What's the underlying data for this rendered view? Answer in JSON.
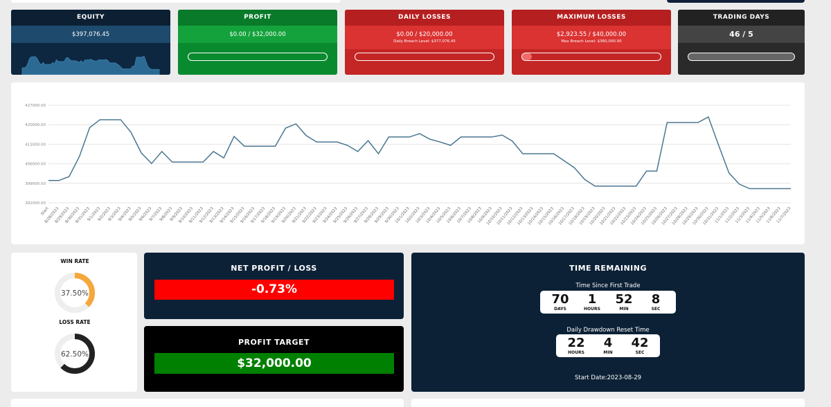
{
  "header_cards": [
    {
      "title": "EQUITY",
      "value": "$397,076.45"
    },
    {
      "title": "PROFIT",
      "value": "$0.00 / $32,000.00"
    },
    {
      "title": "DAILY LOSSES",
      "value": "$0.00 / $20,000.00",
      "note": "Daily Breach Level: $377,076.45"
    },
    {
      "title": "MAXIMUM LOSSES",
      "value": "$2,923.55 / $40,000.00",
      "note": "Max Breach Level: $360,000.00"
    },
    {
      "title": "TRADING DAYS",
      "value": "46 / 5"
    }
  ],
  "chart_data": {
    "type": "line",
    "x": [
      "Start",
      "8/28/2023",
      "8/29/2023",
      "8/30/2023",
      "8/31/2023",
      "9/1/2023",
      "9/2/2023",
      "9/3/2023",
      "9/4/2023",
      "9/5/2023",
      "9/6/2023",
      "9/7/2023",
      "9/8/2023",
      "9/9/2023",
      "9/10/2023",
      "9/11/2023",
      "9/12/2023",
      "9/13/2023",
      "9/14/2023",
      "9/15/2023",
      "9/16/2023",
      "9/17/2023",
      "9/18/2023",
      "9/19/2023",
      "9/20/2023",
      "9/21/2023",
      "9/22/2023",
      "9/23/2023",
      "9/24/2023",
      "9/25/2023",
      "9/26/2023",
      "9/27/2023",
      "9/28/2023",
      "9/29/2023",
      "9/30/2023",
      "10/1/2023",
      "10/2/2023",
      "10/3/2023",
      "10/4/2023",
      "10/5/2023",
      "10/6/2023",
      "10/7/2023",
      "10/8/2023",
      "10/9/2023",
      "10/10/2023",
      "10/11/2023",
      "10/12/2023",
      "10/13/2023",
      "10/14/2023",
      "10/15/2023",
      "10/16/2023",
      "10/17/2023",
      "10/18/2023",
      "10/19/2023",
      "10/20/2023",
      "10/21/2023",
      "10/22/2023",
      "10/23/2023",
      "10/24/2023",
      "10/25/2023",
      "10/26/2023",
      "10/27/2023",
      "10/28/2023",
      "10/29/2023",
      "10/30/2023",
      "10/31/2023",
      "11/1/2023",
      "11/2/2023",
      "11/3/2023",
      "11/4/2023",
      "11/5/2023",
      "11/6/2023",
      "11/7/2023"
    ],
    "values": [
      400000,
      400000,
      401400,
      408600,
      419000,
      421800,
      421800,
      421800,
      417300,
      409900,
      406100,
      410400,
      406600,
      406600,
      406600,
      406600,
      410400,
      408100,
      415800,
      412300,
      412300,
      412300,
      412300,
      418800,
      420300,
      416100,
      413800,
      413800,
      413800,
      412600,
      410400,
      414300,
      409600,
      415600,
      415600,
      415600,
      416800,
      414800,
      413800,
      412600,
      415600,
      415600,
      415600,
      415600,
      416300,
      414100,
      409600,
      409600,
      409600,
      409600,
      407100,
      404600,
      400400,
      398000,
      398000,
      398000,
      398000,
      398000,
      403400,
      403400,
      420800,
      420800,
      420800,
      420800,
      422800,
      412600,
      402700,
      398700,
      397076.45,
      397076.45,
      397076.45,
      397076.45,
      397076.45
    ],
    "color": "#4a7690",
    "ylim": [
      392000,
      427000
    ],
    "yticks": [
      {
        "value": 392000,
        "label": "392000.00"
      },
      {
        "value": 399000,
        "label": "399000.00"
      },
      {
        "value": 406000,
        "label": "406000.00"
      },
      {
        "value": 413000,
        "label": "413000.00"
      },
      {
        "value": 420000,
        "label": "420000.00"
      },
      {
        "value": 427000,
        "label": "427000.00"
      }
    ],
    "grid": true
  },
  "rates": [
    {
      "title": "WIN RATE",
      "value": 37.5,
      "label": "37.50%",
      "color": "#f5a73b"
    },
    {
      "title": "LOSS RATE",
      "value": 62.5,
      "label": "62.50%",
      "color": "#222222"
    }
  ],
  "net_profit": {
    "title": "NET PROFIT / LOSS",
    "value": "-0.73%"
  },
  "profit_target": {
    "title": "PROFIT TARGET",
    "value": "$32,000.00"
  },
  "time_remaining": {
    "title": "TIME REMAINING",
    "since_first_trade": {
      "label": "Time Since First Trade",
      "units": [
        {
          "value": "70",
          "unit": "DAYS"
        },
        {
          "value": "1",
          "unit": "HOURS"
        },
        {
          "value": "52",
          "unit": "MIN"
        },
        {
          "value": "8",
          "unit": "SEC"
        }
      ]
    },
    "reset": {
      "label": "Daily Drawdown Reset Time",
      "units": [
        {
          "value": "22",
          "unit": "HOURS"
        },
        {
          "value": "4",
          "unit": "MIN"
        },
        {
          "value": "42",
          "unit": "SEC"
        }
      ]
    },
    "start_date": "Start Date:2023-08-29"
  }
}
